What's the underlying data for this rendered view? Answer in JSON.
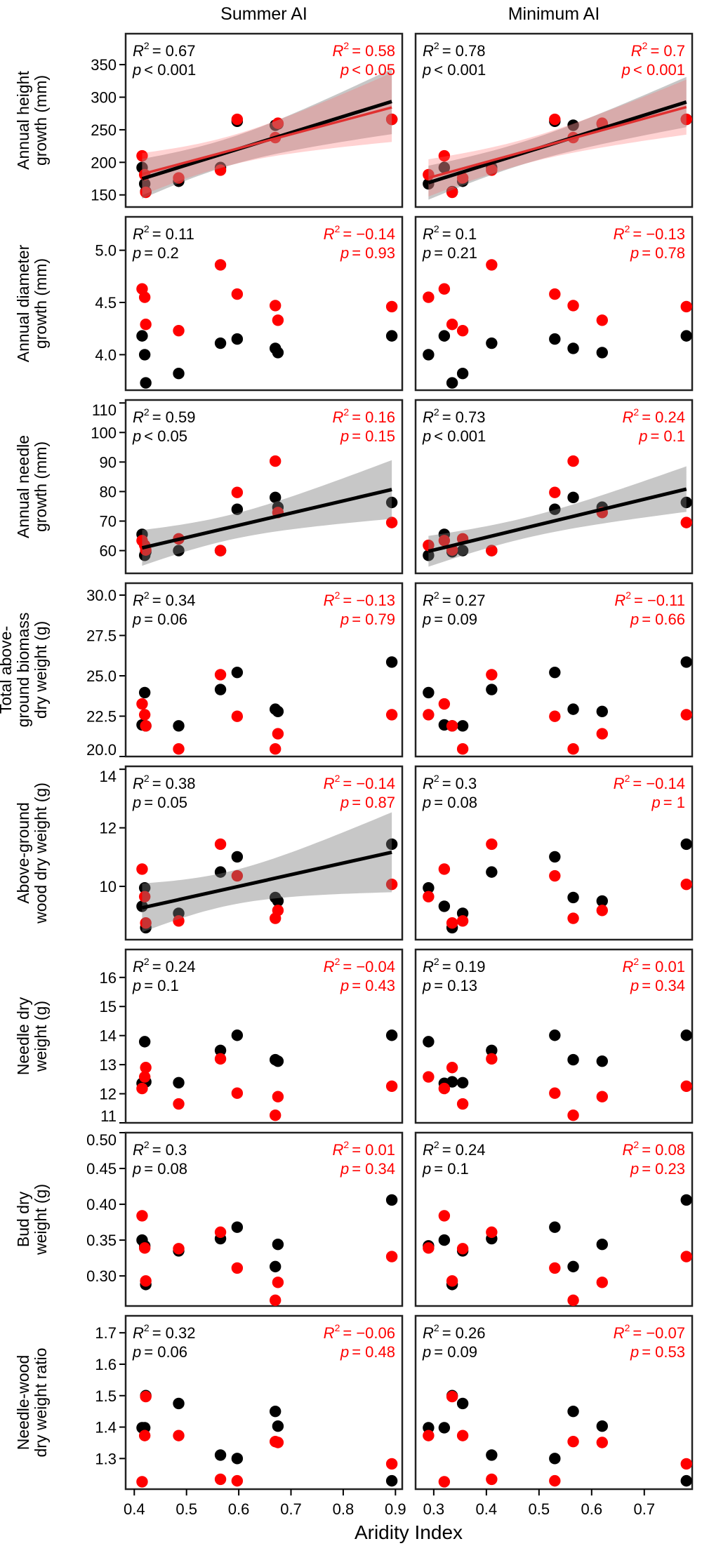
{
  "chart_data": {
    "type": "scatter",
    "xlabel": "Aridity Index",
    "series_colors": {
      "black": "#000000",
      "red": "#ff0000"
    },
    "stat_labels": {
      "r": "R",
      "sup": "2",
      "p": "p"
    },
    "columns": [
      {
        "title": "Summer AI",
        "xlim": [
          0.3835,
          0.913
        ],
        "xticks": [
          0.4,
          0.5,
          0.6,
          0.7,
          0.8,
          0.9
        ],
        "xtick_labels": [
          "0.4",
          "0.5",
          "0.6",
          "0.7",
          "0.8",
          "0.9"
        ],
        "site_x_key": "summer_ai"
      },
      {
        "title": "Minimum AI",
        "xlim": [
          0.2655,
          0.791
        ],
        "xticks": [
          0.3,
          0.4,
          0.5,
          0.6,
          0.7
        ],
        "xtick_labels": [
          "0.3",
          "0.4",
          "0.5",
          "0.6",
          "0.7"
        ],
        "site_x_key": "minimum_ai"
      }
    ],
    "sites": {
      "summer_ai": [
        0.415,
        0.42,
        0.422,
        0.485,
        0.565,
        0.597,
        0.67,
        0.675,
        0.893
      ],
      "minimum_ai": [
        0.32,
        0.29,
        0.335,
        0.355,
        0.41,
        0.53,
        0.565,
        0.62,
        0.78
      ]
    },
    "rows": [
      {
        "ylabel": [
          "Annual height",
          "growth (mm)"
        ],
        "ylim": [
          131.4,
          397.5
        ],
        "yticks": [
          150,
          200,
          250,
          300,
          350
        ],
        "ytick_labels": [
          "150",
          "200",
          "250",
          "300",
          "350"
        ],
        "black": [
          192,
          167,
          155,
          171,
          192,
          263,
          257,
          259,
          266
        ],
        "red": [
          210,
          181,
          154,
          176,
          188,
          266,
          238,
          260,
          266
        ],
        "stats": [
          {
            "black": {
              "r2": "= 0.67",
              "p": "< 0.001"
            },
            "red": {
              "r2": "= 0.58",
              "p": "< 0.05"
            },
            "fit": [
              "black",
              "red"
            ]
          },
          {
            "black": {
              "r2": "= 0.78",
              "p": "< 0.001"
            },
            "red": {
              "r2": "= 0.7",
              "p": "< 0.001"
            },
            "fit": [
              "black",
              "red"
            ]
          }
        ]
      },
      {
        "ylabel": [
          "Annual diameter",
          "growth (mm)"
        ],
        "ylim": [
          3.66,
          5.32
        ],
        "yticks": [
          4.0,
          4.5,
          5.0
        ],
        "ytick_labels": [
          "4.0",
          "4.5",
          "5.0"
        ],
        "black": [
          4.18,
          4.0,
          3.73,
          3.82,
          4.11,
          4.15,
          4.06,
          4.02,
          4.18
        ],
        "red": [
          4.63,
          4.55,
          4.29,
          4.23,
          4.86,
          4.58,
          4.47,
          4.33,
          4.46
        ],
        "stats": [
          {
            "black": {
              "r2": "= 0.11",
              "p": "= 0.2"
            },
            "red": {
              "r2": "= −0.14",
              "p": "= 0.93"
            },
            "fit": []
          },
          {
            "black": {
              "r2": "= 0.1",
              "p": "= 0.21"
            },
            "red": {
              "r2": "= −0.13",
              "p": "= 0.78"
            },
            "fit": []
          }
        ]
      },
      {
        "ylabel": [
          "Annual needle",
          "growth (mm)"
        ],
        "ylim": [
          52.3,
          111
        ],
        "yticks": [
          60,
          70,
          80,
          90,
          100,
          110
        ],
        "ytick_labels": [
          "60",
          "70",
          "80",
          "90",
          "100",
          "110"
        ],
        "black": [
          65.5,
          58.4,
          59.6,
          60.0,
          60.0,
          74.0,
          78.0,
          74.7,
          76.3
        ],
        "red": [
          63.4,
          61.8,
          60.2,
          64.0,
          60.0,
          79.7,
          90.3,
          72.9,
          69.5
        ],
        "stats": [
          {
            "black": {
              "r2": "= 0.59",
              "p": "< 0.05"
            },
            "red": {
              "r2": "= 0.16",
              "p": "= 0.15"
            },
            "fit": [
              "black"
            ]
          },
          {
            "black": {
              "r2": "= 0.73",
              "p": "< 0.001"
            },
            "red": {
              "r2": "= 0.24",
              "p": "= 0.1"
            },
            "fit": [
              "black"
            ]
          }
        ]
      },
      {
        "ylabel": [
          "Total above-",
          "ground biomass",
          "dry weight (g)"
        ],
        "ylim": [
          20.0,
          30.74
        ],
        "yticks": [
          20.0,
          22.5,
          25.0,
          27.5,
          30.0
        ],
        "ytick_labels": [
          "20.0",
          "22.5",
          "25.0",
          "27.5",
          "30.0"
        ],
        "black": [
          21.96,
          23.96,
          21.9,
          21.9,
          24.15,
          25.21,
          22.93,
          22.79,
          25.85
        ],
        "red": [
          23.26,
          22.59,
          21.9,
          20.47,
          25.07,
          22.49,
          20.47,
          21.41,
          22.59
        ],
        "stats": [
          {
            "black": {
              "r2": "= 0.34",
              "p": "= 0.06"
            },
            "red": {
              "r2": "= −0.13",
              "p": "= 0.79"
            },
            "fit": []
          },
          {
            "black": {
              "r2": "= 0.27",
              "p": "= 0.09"
            },
            "red": {
              "r2": "= −0.11",
              "p": "= 0.66"
            },
            "fit": []
          }
        ]
      },
      {
        "ylabel": [
          "Above-ground",
          "wood dry weight (g)"
        ],
        "ylim": [
          8.18,
          14.1
        ],
        "yticks": [
          10,
          12,
          14
        ],
        "ytick_labels": [
          "10",
          "12",
          "14"
        ],
        "black": [
          9.32,
          9.95,
          8.59,
          9.08,
          10.49,
          11.01,
          9.62,
          9.5,
          11.44
        ],
        "red": [
          10.59,
          9.65,
          8.75,
          8.82,
          11.44,
          10.36,
          8.91,
          9.18,
          10.07
        ],
        "stats": [
          {
            "black": {
              "r2": "= 0.38",
              "p": "= 0.05"
            },
            "red": {
              "r2": "= −0.14",
              "p": "= 0.87"
            },
            "fit": [
              "black"
            ]
          },
          {
            "black": {
              "r2": "= 0.3",
              "p": "= 0.08"
            },
            "red": {
              "r2": "= −0.14",
              "p": "= 1"
            },
            "fit": []
          }
        ]
      },
      {
        "ylabel": [
          "Needle dry",
          "weight (g)"
        ],
        "ylim": [
          11.0,
          16.96
        ],
        "yticks": [
          11,
          12,
          13,
          14,
          15,
          16
        ],
        "ytick_labels": [
          "11",
          "12",
          "13",
          "14",
          "15",
          "16"
        ],
        "black": [
          12.36,
          13.79,
          12.41,
          12.38,
          13.49,
          14.01,
          13.17,
          13.12,
          14.01
        ],
        "red": [
          12.18,
          12.58,
          12.9,
          11.65,
          13.2,
          12.02,
          11.26,
          11.9,
          12.26
        ],
        "stats": [
          {
            "black": {
              "r2": "= 0.24",
              "p": "= 0.1"
            },
            "red": {
              "r2": "= −0.04",
              "p": "= 0.43"
            },
            "fit": []
          },
          {
            "black": {
              "r2": "= 0.19",
              "p": "= 0.13"
            },
            "red": {
              "r2": "= 0.01",
              "p": "= 0.34"
            },
            "fit": []
          }
        ]
      },
      {
        "ylabel": [
          "Bud dry",
          "weight (g)"
        ],
        "ylim": [
          0.258,
          0.5
        ],
        "yticks": [
          0.3,
          0.35,
          0.4,
          0.45,
          0.5
        ],
        "ytick_labels": [
          "0.30",
          "0.35",
          "0.40",
          "0.45",
          "0.50"
        ],
        "black": [
          0.35,
          0.342,
          0.288,
          0.335,
          0.352,
          0.368,
          0.313,
          0.344,
          0.406
        ],
        "red": [
          0.384,
          0.339,
          0.293,
          0.338,
          0.361,
          0.311,
          0.266,
          0.291,
          0.327
        ],
        "stats": [
          {
            "black": {
              "r2": "= 0.3",
              "p": "= 0.08"
            },
            "red": {
              "r2": "= 0.01",
              "p": "= 0.34"
            },
            "fit": []
          },
          {
            "black": {
              "r2": "= 0.24",
              "p": "= 0.1"
            },
            "red": {
              "r2": "= 0.08",
              "p": "= 0.23"
            },
            "fit": []
          }
        ]
      },
      {
        "ylabel": [
          "Needle-wood",
          "dry weight ratio"
        ],
        "ylim": [
          1.2025,
          1.754
        ],
        "yticks": [
          1.3,
          1.4,
          1.5,
          1.6,
          1.7
        ],
        "ytick_labels": [
          "1.3",
          "1.4",
          "1.5",
          "1.6",
          "1.7"
        ],
        "black": [
          1.398,
          1.398,
          1.5,
          1.475,
          1.311,
          1.3,
          1.45,
          1.403,
          1.229
        ],
        "red": [
          1.226,
          1.373,
          1.497,
          1.373,
          1.234,
          1.229,
          1.354,
          1.351,
          1.283
        ],
        "stats": [
          {
            "black": {
              "r2": "= 0.32",
              "p": "= 0.06"
            },
            "red": {
              "r2": "= −0.06",
              "p": "= 0.48"
            },
            "fit": []
          },
          {
            "black": {
              "r2": "= 0.26",
              "p": "= 0.09"
            },
            "red": {
              "r2": "= −0.07",
              "p": "= 0.53"
            },
            "fit": []
          }
        ]
      }
    ]
  }
}
